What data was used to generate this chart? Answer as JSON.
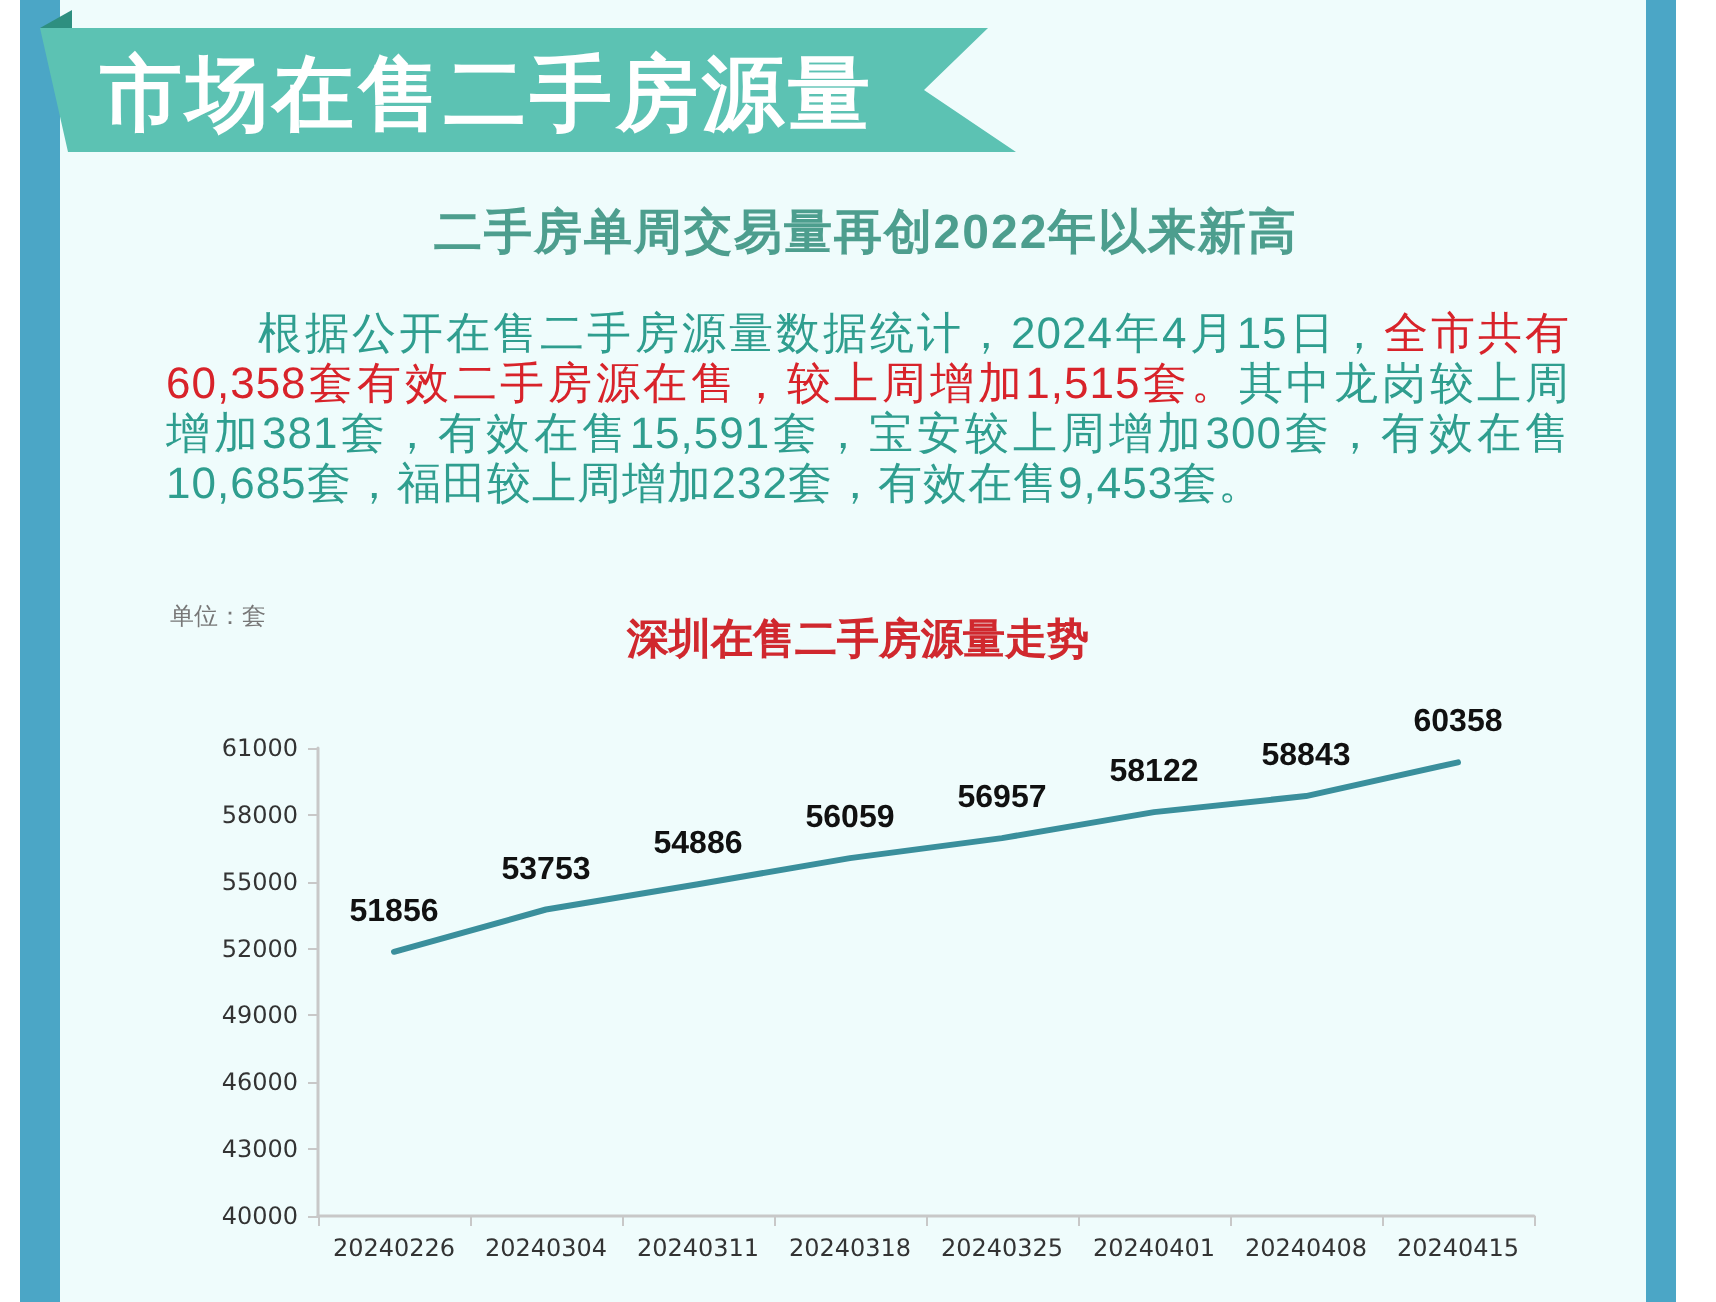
{
  "chart_data": {
    "type": "line",
    "title": "深圳在售二手房源量走势",
    "ylabel": "单位：套",
    "annotations": [
      "市场在售二手房源量",
      "二手房单周交易量再创2022年以来新高",
      "根据公开在售二手房源量数据统计，2024年4月15日，",
      "全市共有",
      "60,358套有效二手房源在售，较上周增加1,515套。",
      "其中龙岗较上周",
      "增加381套，有效在售15,591套，宝安较上周增加300套，有效在售",
      "10,685套，福田较上周增加232套，有效在售9,453套。"
    ],
    "categories": [
      "20240226",
      "20240304",
      "20240311",
      "20240318",
      "20240325",
      "20240401",
      "20240408",
      "20240415"
    ],
    "values": [
      51856,
      53753,
      54886,
      56059,
      56957,
      58122,
      58843,
      60358
    ],
    "color": "#3a8f9c",
    "ylim": [
      40000,
      61000
    ],
    "yticks": [
      40000,
      43000,
      46000,
      49000,
      52000,
      55000,
      58000,
      61000
    ],
    "grid": false,
    "marker": "none",
    "line_style": "solid",
    "data_labels": true
  }
}
